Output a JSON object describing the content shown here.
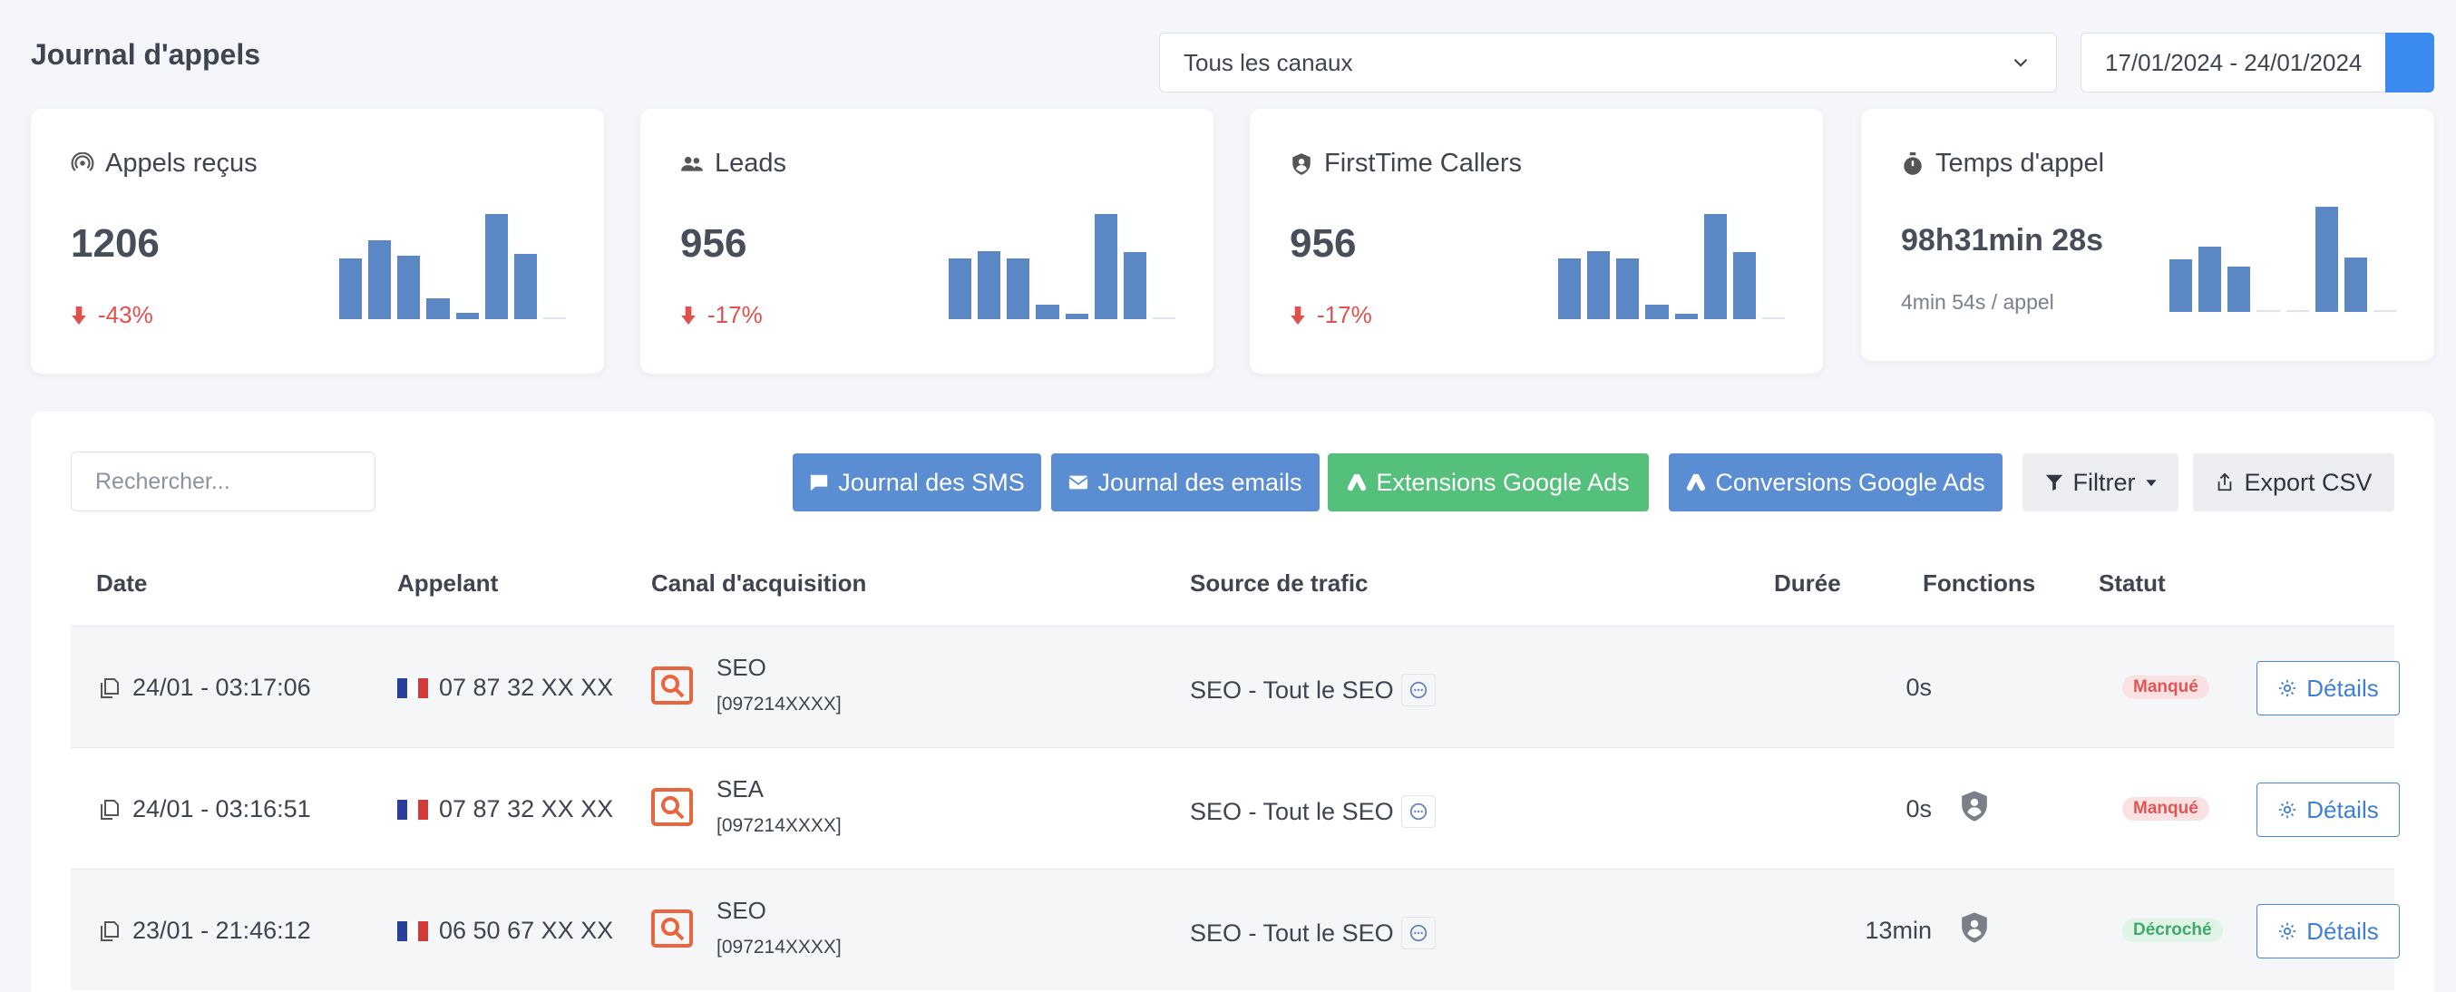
{
  "header": {
    "title": "Journal d'appels",
    "channel_select": "Tous les canaux",
    "date_range": "17/01/2024 - 24/01/2024"
  },
  "stats": [
    {
      "title": "Appels reçus",
      "icon": "broadcast-icon",
      "value": "1206",
      "delta": "-43%",
      "bars": [
        0.58,
        0.75,
        0.6,
        0.2,
        0.06,
        1.0,
        0.62,
        0.0
      ]
    },
    {
      "title": "Leads",
      "icon": "users-icon",
      "value": "956",
      "delta": "-17%",
      "bars": [
        0.58,
        0.65,
        0.58,
        0.14,
        0.05,
        1.0,
        0.64,
        0.0
      ]
    },
    {
      "title": "FirstTime Callers",
      "icon": "user-shield-icon",
      "value": "956",
      "delta": "-17%",
      "bars": [
        0.58,
        0.65,
        0.58,
        0.14,
        0.05,
        1.0,
        0.64,
        0.0
      ]
    },
    {
      "title": "Temps d'appel",
      "icon": "stopwatch-icon",
      "value": "98h31min 28s",
      "sub": "4min 54s / appel",
      "bars": [
        0.5,
        0.62,
        0.43,
        0.0,
        0.0,
        1.0,
        0.52,
        0.0
      ]
    }
  ],
  "toolbar": {
    "search_placeholder": "Rechercher...",
    "sms_label": "Journal des SMS",
    "emails_label": "Journal des emails",
    "extensions_label": "Extensions Google Ads",
    "conversions_label": "Conversions Google Ads",
    "filter_label": "Filtrer",
    "export_label": "Export CSV"
  },
  "table": {
    "columns": [
      "Date",
      "Appelant",
      "Canal d'acquisition",
      "Source de trafic",
      "Durée",
      "Fonctions",
      "Statut"
    ],
    "details_label": "Détails",
    "rows": [
      {
        "date": "24/01 - 03:17:06",
        "caller": "07 87 32 XX XX",
        "canal": "SEO",
        "code": "[097214XXXX]",
        "source": "SEO - Tout le SEO",
        "duree": "0s",
        "fonction": false,
        "status": "Manqué",
        "status_type": "missed"
      },
      {
        "date": "24/01 - 03:16:51",
        "caller": "07 87 32 XX XX",
        "canal": "SEA",
        "code": "[097214XXXX]",
        "source": "SEO - Tout le SEO",
        "duree": "0s",
        "fonction": true,
        "status": "Manqué",
        "status_type": "missed"
      },
      {
        "date": "23/01 - 21:46:12",
        "caller": "06 50 67 XX XX",
        "canal": "SEO",
        "code": "[097214XXXX]",
        "source": "SEO - Tout le SEO",
        "duree": "13min",
        "fonction": true,
        "status": "Décroché",
        "status_type": "answered"
      }
    ]
  },
  "colors": {
    "primary": "#5b8dd2",
    "success": "#55c07c",
    "danger": "#e2504c",
    "bar": "#5b88c4",
    "seo_icon": "#e8663d"
  }
}
